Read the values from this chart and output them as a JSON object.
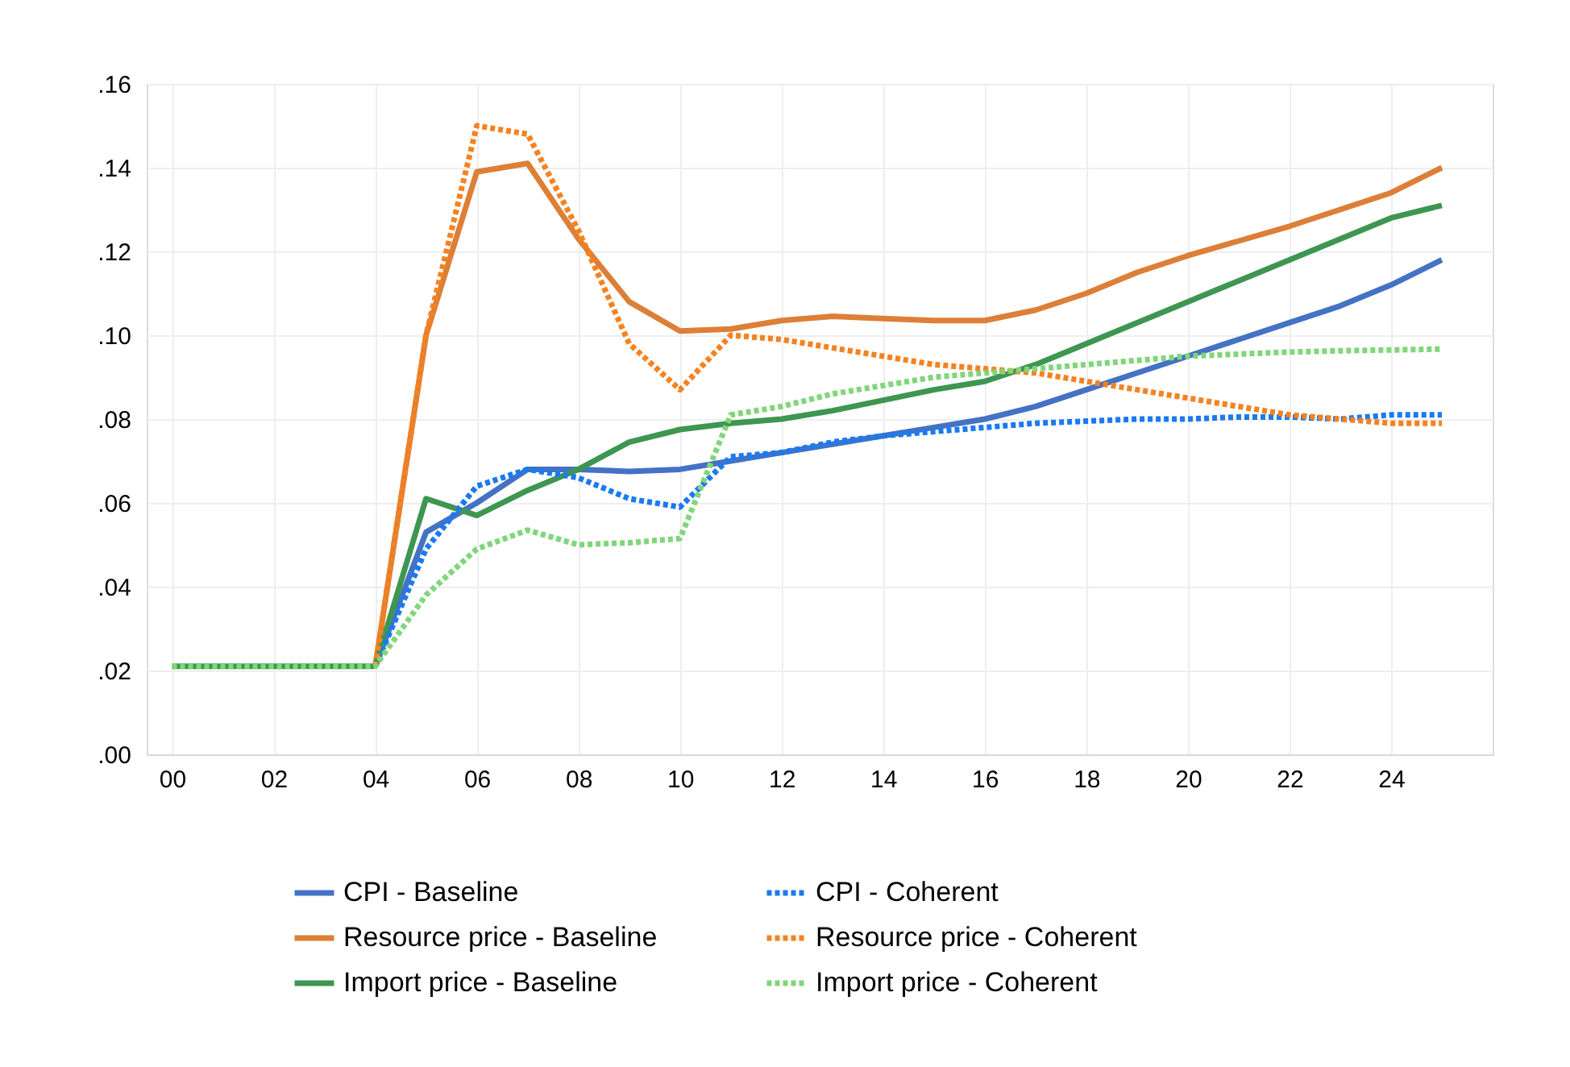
{
  "chart_data": {
    "type": "line",
    "x": [
      0,
      1,
      2,
      3,
      4,
      5,
      6,
      7,
      8,
      9,
      10,
      11,
      12,
      13,
      14,
      15,
      16,
      17,
      18,
      19,
      20,
      21,
      22,
      23,
      24,
      25
    ],
    "xlim": [
      -0.5,
      26
    ],
    "xticks": [
      {
        "value": 0,
        "label": "00"
      },
      {
        "value": 2,
        "label": "02"
      },
      {
        "value": 4,
        "label": "04"
      },
      {
        "value": 6,
        "label": "06"
      },
      {
        "value": 8,
        "label": "08"
      },
      {
        "value": 10,
        "label": "10"
      },
      {
        "value": 12,
        "label": "12"
      },
      {
        "value": 14,
        "label": "14"
      },
      {
        "value": 16,
        "label": "16"
      },
      {
        "value": 18,
        "label": "18"
      },
      {
        "value": 20,
        "label": "20"
      },
      {
        "value": 22,
        "label": "22"
      },
      {
        "value": 24,
        "label": "24"
      }
    ],
    "ylim": [
      0,
      0.16
    ],
    "yticks": [
      {
        "value": 0,
        "label": ".00"
      },
      {
        "value": 0.02,
        "label": ".02"
      },
      {
        "value": 0.04,
        "label": ".04"
      },
      {
        "value": 0.06,
        "label": ".06"
      },
      {
        "value": 0.08,
        "label": ".08"
      },
      {
        "value": 0.1,
        "label": ".10"
      },
      {
        "value": 0.12,
        "label": ".12"
      },
      {
        "value": 0.14,
        "label": ".14"
      },
      {
        "value": 0.16,
        "label": ".16"
      }
    ],
    "grid": true,
    "legend": "bottom",
    "series": [
      {
        "name": "CPI - Baseline",
        "color": "#4472c4",
        "line_style": "solid",
        "values": [
          null,
          null,
          null,
          null,
          0.021,
          0.053,
          0.06,
          0.068,
          0.068,
          0.0675,
          0.068,
          0.07,
          0.072,
          0.074,
          0.076,
          0.078,
          0.08,
          0.083,
          0.087,
          0.091,
          0.095,
          0.099,
          0.103,
          0.107,
          0.112,
          0.118
        ]
      },
      {
        "name": "Resource price - Baseline",
        "color": "#dd7f37",
        "line_style": "solid",
        "values": [
          null,
          null,
          null,
          null,
          0.021,
          0.1,
          0.139,
          0.141,
          0.123,
          0.108,
          0.101,
          0.1015,
          0.1035,
          0.1045,
          0.104,
          0.1035,
          0.1035,
          0.106,
          0.11,
          0.115,
          0.119,
          0.1225,
          0.126,
          0.13,
          0.134,
          0.14
        ]
      },
      {
        "name": "Import price - Baseline",
        "color": "#3e9651",
        "line_style": "solid",
        "values": [
          0.021,
          0.021,
          0.021,
          0.021,
          0.021,
          0.061,
          0.057,
          0.063,
          0.068,
          0.0745,
          0.0775,
          0.079,
          0.08,
          0.082,
          0.0845,
          0.087,
          0.089,
          0.093,
          0.098,
          0.103,
          0.108,
          0.113,
          0.118,
          0.123,
          0.128,
          0.131
        ]
      },
      {
        "name": "CPI - Coherent",
        "color": "#1a7af0",
        "line_style": "dashed",
        "values": [
          null,
          null,
          null,
          null,
          0.021,
          0.049,
          0.064,
          0.068,
          0.066,
          0.061,
          0.059,
          0.071,
          0.072,
          0.0745,
          0.076,
          0.077,
          0.078,
          0.079,
          0.0795,
          0.08,
          0.08,
          0.0805,
          0.0805,
          0.08,
          0.081,
          0.081
        ]
      },
      {
        "name": "Resource price - Coherent",
        "color": "#f58220",
        "line_style": "dashed",
        "values": [
          null,
          null,
          null,
          null,
          0.021,
          0.1,
          0.15,
          0.148,
          0.125,
          0.098,
          0.087,
          0.1,
          0.099,
          0.097,
          0.095,
          0.093,
          0.092,
          0.091,
          0.089,
          0.087,
          0.085,
          0.083,
          0.081,
          0.08,
          0.079,
          0.079
        ]
      },
      {
        "name": "Import price - Coherent",
        "color": "#80d67a",
        "line_style": "dashed",
        "values": [
          0.021,
          0.021,
          0.021,
          0.021,
          0.021,
          0.038,
          0.049,
          0.0535,
          0.05,
          0.0505,
          0.0515,
          0.081,
          0.083,
          0.086,
          0.088,
          0.09,
          0.091,
          0.092,
          0.093,
          0.094,
          0.095,
          0.0955,
          0.096,
          0.0963,
          0.0965,
          0.0967
        ]
      }
    ]
  }
}
